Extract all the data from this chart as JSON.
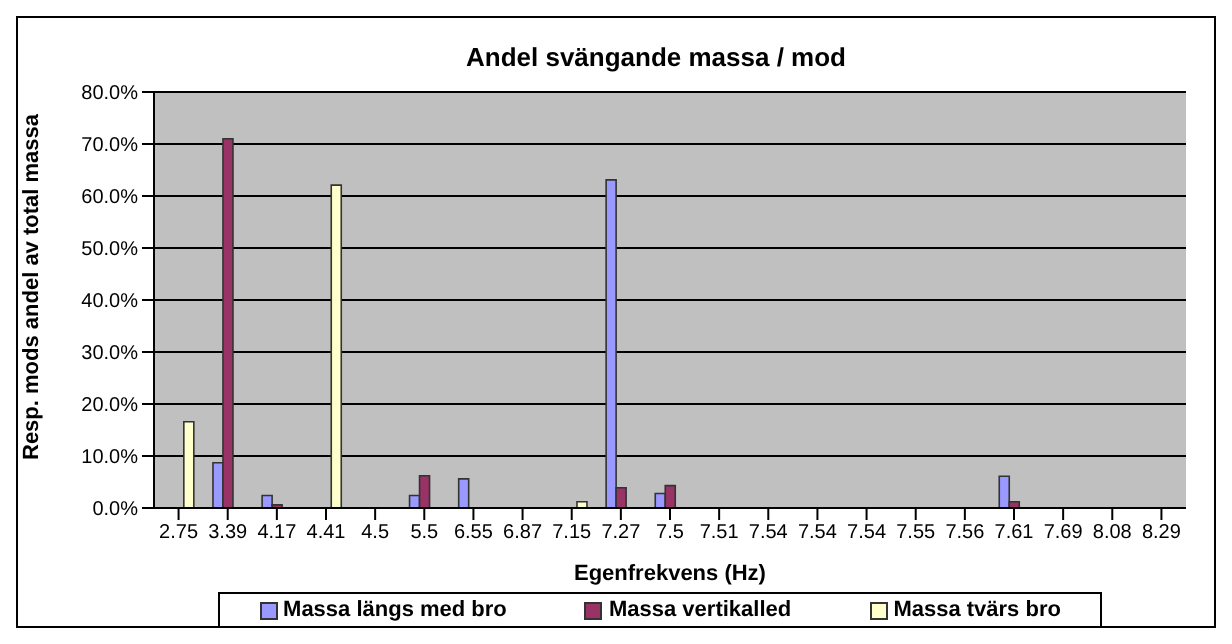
{
  "chart_data": {
    "type": "bar",
    "title": "Andel svängande massa / mod",
    "xlabel": "Egenfrekvens (Hz)",
    "ylabel": "Resp. mods andel av total massa",
    "categories": [
      "2.75",
      "3.39",
      "4.17",
      "4.41",
      "4.5",
      "5.5",
      "6.55",
      "6.87",
      "7.15",
      "7.27",
      "7.5",
      "7.51",
      "7.54",
      "7.54",
      "7.54",
      "7.55",
      "7.56",
      "7.61",
      "7.69",
      "8.08",
      "8.29"
    ],
    "series": [
      {
        "name": "Massa längs med bro",
        "color": "#9999ff",
        "values": [
          0,
          8.7,
          2.4,
          0,
          null,
          2.4,
          5.6,
          null,
          0,
          63.1,
          2.8,
          0,
          0,
          0,
          0,
          0,
          null,
          6.1,
          0,
          0,
          0
        ]
      },
      {
        "name": "Massa vertikalled",
        "color": "#993366",
        "values": [
          0,
          71.0,
          0.6,
          0,
          0,
          6.2,
          null,
          0,
          0,
          3.9,
          4.3,
          0,
          0,
          0,
          0,
          0,
          0,
          1.2,
          0,
          0,
          0
        ]
      },
      {
        "name": "Massa tvärs bro",
        "color": "#ffffcc",
        "values": [
          16.6,
          0,
          0,
          62.1,
          0,
          0,
          0,
          0,
          1.2,
          0,
          0,
          0,
          0,
          0,
          0,
          0,
          0,
          0,
          0,
          0,
          0
        ]
      }
    ],
    "ylim": [
      0,
      80
    ],
    "yticks": [
      {
        "value": 0,
        "label": "0.0%"
      },
      {
        "value": 10,
        "label": "10.0%"
      },
      {
        "value": 20,
        "label": "20.0%"
      },
      {
        "value": 30,
        "label": "30.0%"
      },
      {
        "value": 40,
        "label": "40.0%"
      },
      {
        "value": 50,
        "label": "50.0%"
      },
      {
        "value": 60,
        "label": "60.0%"
      },
      {
        "value": 70,
        "label": "70.0%"
      },
      {
        "value": 80,
        "label": "80.0%"
      }
    ],
    "grid": "y",
    "legend": "bottom"
  }
}
